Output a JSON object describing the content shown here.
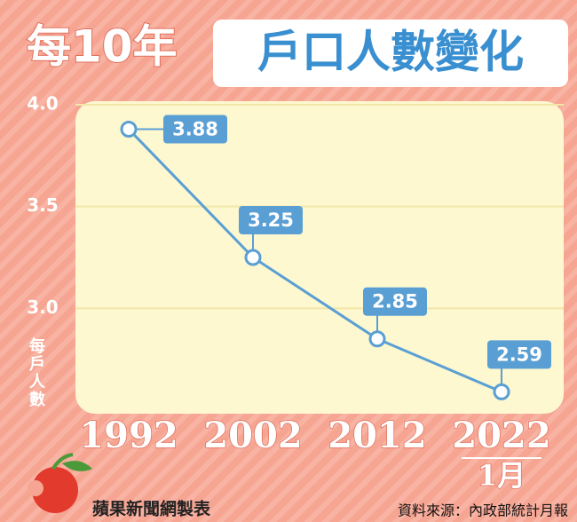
{
  "chart_data": {
    "type": "line",
    "title": "每10年",
    "subtitle": "戶口人數變化",
    "y_label": "每戶人數",
    "categories": [
      "1992",
      "2002",
      "2012",
      "2022"
    ],
    "category_note": "1月",
    "values": [
      3.88,
      3.25,
      2.85,
      2.59
    ],
    "color": "#5a9fd4",
    "ylim": [
      2.5,
      4.0
    ],
    "yticks": [
      {
        "value": 3,
        "label": "3.0"
      },
      3.5,
      {
        "value": 4,
        "label": "4.0"
      }
    ],
    "grid": true,
    "credit": "蘋果新聞網製表",
    "source": "資料來源：內政部統計月報"
  }
}
